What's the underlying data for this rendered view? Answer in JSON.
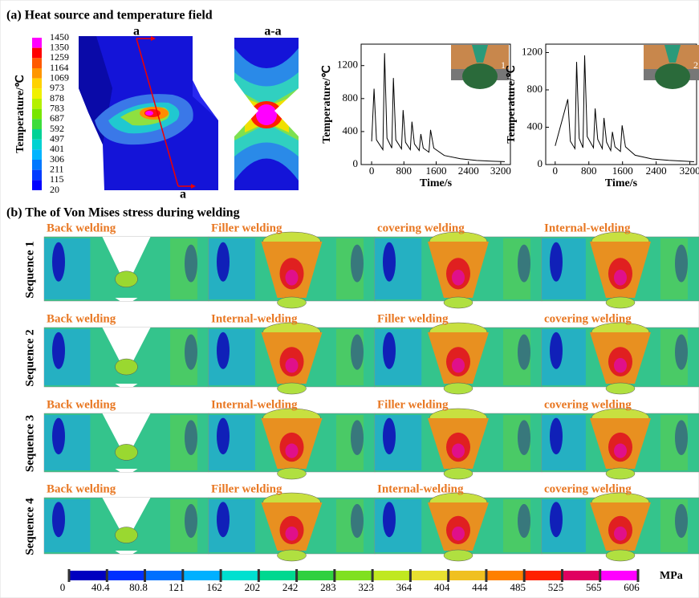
{
  "panel_a": {
    "title": "(a) Heat source and temperature field",
    "colorbar": {
      "label": "Temperature/℃",
      "ticks": [
        1450,
        1350,
        1259,
        1164,
        1069,
        973,
        878,
        783,
        687,
        592,
        497,
        401,
        306,
        211,
        115,
        20
      ]
    },
    "section_marks": [
      "a",
      "a"
    ],
    "section_title": "a-a"
  },
  "chart_data": [
    {
      "type": "line",
      "x_label": "Time/s",
      "y_label": "Temperature/℃",
      "inset_label": "1",
      "color": "#000000",
      "x": [
        0,
        60,
        120,
        280,
        320,
        380,
        500,
        540,
        600,
        740,
        780,
        840,
        960,
        1000,
        1060,
        1180,
        1220,
        1280,
        1420,
        1460,
        1540,
        1800,
        2200,
        2600,
        3000,
        3300
      ],
      "values": [
        280,
        920,
        300,
        180,
        1350,
        320,
        200,
        1050,
        300,
        190,
        660,
        270,
        180,
        520,
        250,
        170,
        370,
        200,
        150,
        420,
        200,
        110,
        70,
        50,
        40,
        35
      ],
      "xlim": [
        -260,
        3440
      ],
      "ylim": [
        0,
        1460
      ],
      "xticks": [
        0,
        800,
        1600,
        2400,
        3200
      ],
      "yticks": [
        0,
        400,
        800,
        1200
      ]
    },
    {
      "type": "line",
      "x_label": "Time/s",
      "y_label": "Temperature/℃",
      "inset_label": "2",
      "color": "#000000",
      "x": [
        0,
        300,
        360,
        470,
        510,
        570,
        660,
        700,
        760,
        910,
        950,
        1010,
        1120,
        1160,
        1220,
        1320,
        1360,
        1420,
        1550,
        1590,
        1670,
        1900,
        2300,
        2700,
        3100,
        3300
      ],
      "values": [
        200,
        700,
        250,
        170,
        1100,
        280,
        180,
        1170,
        300,
        180,
        600,
        270,
        170,
        500,
        240,
        150,
        350,
        190,
        140,
        420,
        190,
        100,
        60,
        45,
        35,
        30
      ],
      "xlim": [
        -225,
        3360
      ],
      "ylim": [
        0,
        1290
      ],
      "xticks": [
        0,
        800,
        1600,
        2400,
        3200
      ],
      "yticks": [
        0,
        400,
        800,
        1200
      ]
    }
  ],
  "panel_b": {
    "title": "(b) The of Von Mises stress during welding",
    "rows": [
      {
        "label": "Sequence 1",
        "panels": [
          "Back welding",
          "Filler welding",
          "covering welding",
          "Internal-welding"
        ]
      },
      {
        "label": "Sequence 2",
        "panels": [
          "Back welding",
          "Internal-welding",
          "Filler welding",
          "covering welding"
        ]
      },
      {
        "label": "Sequence 3",
        "panels": [
          "Back welding",
          "Internal-welding",
          "Filler welding",
          "covering welding"
        ]
      },
      {
        "label": "Sequence 4",
        "panels": [
          "Back welding",
          "Filler welding",
          "Internal-welding",
          "covering welding"
        ]
      }
    ],
    "colorbar": {
      "unit": "MPa",
      "ticks": [
        0,
        40.4,
        80.8,
        121,
        162,
        202,
        242,
        283,
        323,
        364,
        404,
        444,
        485,
        525,
        565,
        606
      ]
    }
  }
}
